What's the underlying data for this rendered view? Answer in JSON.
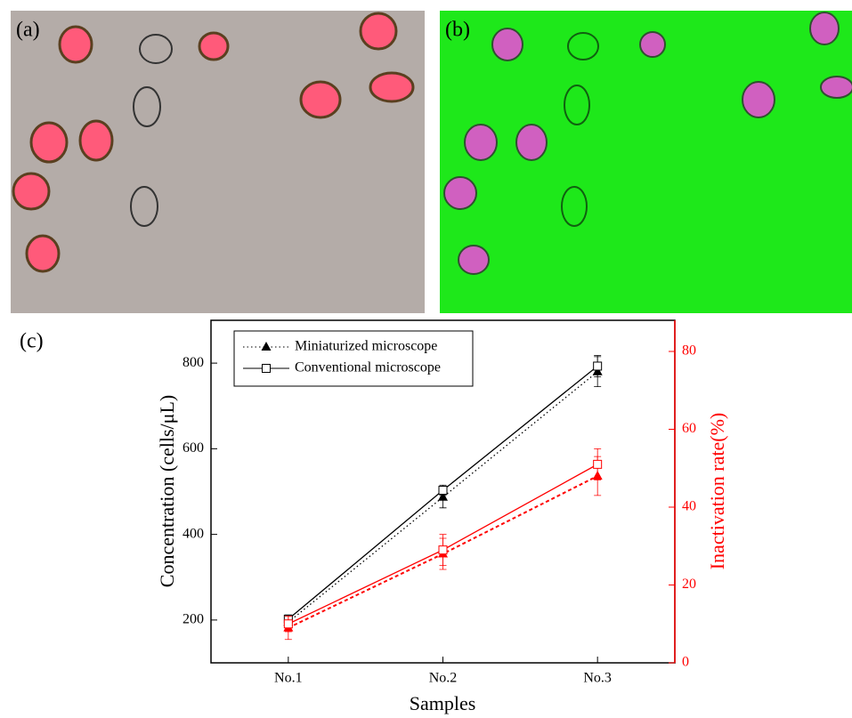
{
  "panels": {
    "a": "(a)",
    "b": "(b)",
    "c": "(c)"
  },
  "chart_data": {
    "type": "line",
    "x_label": "Samples",
    "y_label": "Concentration (cells/μL)",
    "y2_label": "Inactivation rate(%)",
    "categories": [
      "No.1",
      "No.2",
      "No.3"
    ],
    "ylim": [
      100,
      900
    ],
    "yticks": [
      200,
      400,
      600,
      800
    ],
    "y2lim": [
      0,
      88
    ],
    "y2ticks": [
      0,
      20,
      40,
      60,
      80
    ],
    "legend": "top-left",
    "series": [
      {
        "name": "Miniaturized microscope",
        "color": "#000000",
        "marker": "triangle",
        "line_style": "dotted",
        "values": [
          195,
          487,
          780
        ],
        "errors": [
          12,
          25,
          35
        ]
      },
      {
        "name": "Conventional microscope",
        "color": "#000000",
        "marker": "square",
        "line_style": "solid",
        "values": [
          202,
          503,
          793
        ],
        "errors": [
          10,
          12,
          25
        ]
      },
      {
        "color": "#ff0000",
        "axis": "y2",
        "marker": "triangle",
        "line_style": "dotted",
        "values": [
          9,
          28,
          48
        ],
        "errors": [
          3,
          4,
          5
        ]
      },
      {
        "color": "#ff0000",
        "axis": "y2",
        "marker": "square",
        "line_style": "solid",
        "values": [
          10,
          29,
          51
        ],
        "errors": [
          2,
          4,
          4
        ]
      }
    ]
  }
}
